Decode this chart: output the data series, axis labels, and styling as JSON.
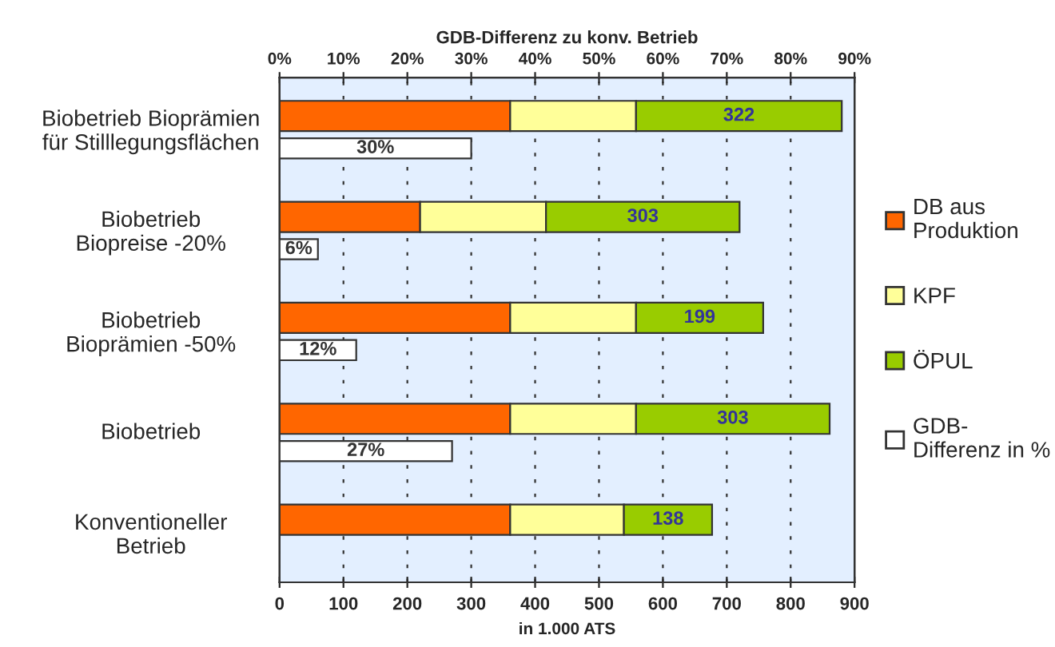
{
  "chart_data": [
    {
      "type": "bar",
      "orientation": "horizontal",
      "stacked": true,
      "categories": [
        "Biobetrieb Bioprämien\nfür Stilllegungsflächen",
        "Biobetrieb\nBiopreise -20%",
        "Biobetrieb\nBioprämien -50%",
        "Biobetrieb",
        "Konventioneller\nBetrieb"
      ],
      "series": [
        {
          "name": "DB aus\nProduktion",
          "color": "#ff6600",
          "values": [
            361,
            220,
            361,
            361,
            361
          ]
        },
        {
          "name": "KPF",
          "color": "#ffff99",
          "values": [
            197,
            197,
            197,
            197,
            178
          ]
        },
        {
          "name": "ÖPUL",
          "color": "#99cc00",
          "values": [
            322,
            303,
            199,
            303,
            138
          ],
          "value_labels": [
            "322",
            "303",
            "199",
            "303",
            "138"
          ]
        }
      ],
      "xlabel": "in 1.000 ATS",
      "xlim": [
        0,
        900
      ],
      "xticks": [
        0,
        100,
        200,
        300,
        400,
        500,
        600,
        700,
        800,
        900
      ],
      "grid": "x",
      "legend": "right"
    },
    {
      "type": "bar",
      "orientation": "horizontal",
      "categories": [
        null,
        null,
        null,
        null,
        null
      ],
      "tick_labels": "x",
      "series": [
        {
          "name": "GDB-\nDifferenz in %",
          "color": "#ffffff",
          "values": [
            30,
            6,
            12,
            27,
            null
          ],
          "value_labels": [
            "30%",
            "6%",
            "12%",
            "27%",
            null
          ]
        }
      ],
      "xlabel": "GDB-Differenz zu konv. Betrieb",
      "xlim": [
        0,
        90
      ],
      "xticks": [
        {
          "value": 0,
          "label": "0%"
        },
        {
          "value": 10,
          "label": "10%"
        },
        {
          "value": 20,
          "label": "20%"
        },
        {
          "value": 30,
          "label": "30%"
        },
        {
          "value": 40,
          "label": "40%"
        },
        {
          "value": 50,
          "label": "50%"
        },
        {
          "value": 60,
          "label": "60%"
        },
        {
          "value": 70,
          "label": "70%"
        },
        {
          "value": 80,
          "label": "80%"
        },
        {
          "value": 90,
          "label": "90%"
        }
      ],
      "legend": "right"
    }
  ]
}
